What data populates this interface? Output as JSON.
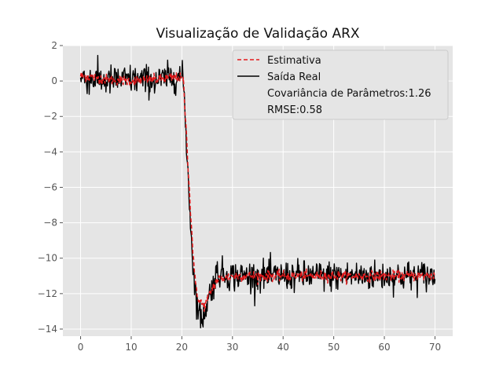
{
  "chart_data": {
    "type": "line",
    "title": "Visualização de Validação ARX",
    "xlabel": "",
    "ylabel": "",
    "xlim": [
      -3.5,
      73.5
    ],
    "ylim": [
      -14.4,
      2.0
    ],
    "x_ticks": [
      0,
      10,
      20,
      30,
      40,
      50,
      60,
      70
    ],
    "y_ticks": [
      2,
      0,
      -2,
      -4,
      -6,
      -8,
      -10,
      -12,
      -14
    ],
    "grid": true,
    "legend_position": "top-right",
    "x_range": [
      0,
      70
    ],
    "sample_count": 701,
    "series": [
      {
        "name": "Estimativa",
        "style": "dashed",
        "color": "#e41a1c",
        "points": [
          [
            0,
            0.3
          ],
          [
            5,
            0.1
          ],
          [
            10,
            0.0
          ],
          [
            15,
            0.1
          ],
          [
            19.5,
            0.2
          ],
          [
            20.3,
            0.0
          ],
          [
            21,
            -3.5
          ],
          [
            21.8,
            -7.8
          ],
          [
            22.5,
            -11.0
          ],
          [
            23.3,
            -12.4
          ],
          [
            24.5,
            -12.7
          ],
          [
            25.5,
            -12.0
          ],
          [
            27,
            -11.2
          ],
          [
            30,
            -11.0
          ],
          [
            40,
            -11.0
          ],
          [
            50,
            -11.0
          ],
          [
            60,
            -11.0
          ],
          [
            70,
            -11.0
          ]
        ]
      },
      {
        "name": "Saída Real",
        "style": "solid",
        "color": "#000000",
        "pattern": "Noisy measured output: fluctuates around ~0.1 from x=0 to 20, drops sharply between x≈20 and x≈23, dips to about -13.5 near x=24, then fluctuates around -11 up to x=70.",
        "points": [
          [
            0,
            0.2
          ],
          [
            5,
            0.0
          ],
          [
            10,
            0.1
          ],
          [
            15,
            0.0
          ],
          [
            19.5,
            0.3
          ],
          [
            20.3,
            0.1
          ],
          [
            21,
            -4.0
          ],
          [
            21.8,
            -8.5
          ],
          [
            22.5,
            -11.5
          ],
          [
            23.3,
            -13.0
          ],
          [
            24,
            -13.5
          ],
          [
            25.5,
            -12.0
          ],
          [
            27,
            -10.8
          ],
          [
            30,
            -11.0
          ],
          [
            40,
            -11.0
          ],
          [
            50,
            -11.0
          ],
          [
            60,
            -11.0
          ],
          [
            70,
            -11.0
          ]
        ]
      }
    ],
    "legend_text_entries": [
      "Covariância de Parâmetros:1.26",
      "RMSE:0.58"
    ]
  }
}
